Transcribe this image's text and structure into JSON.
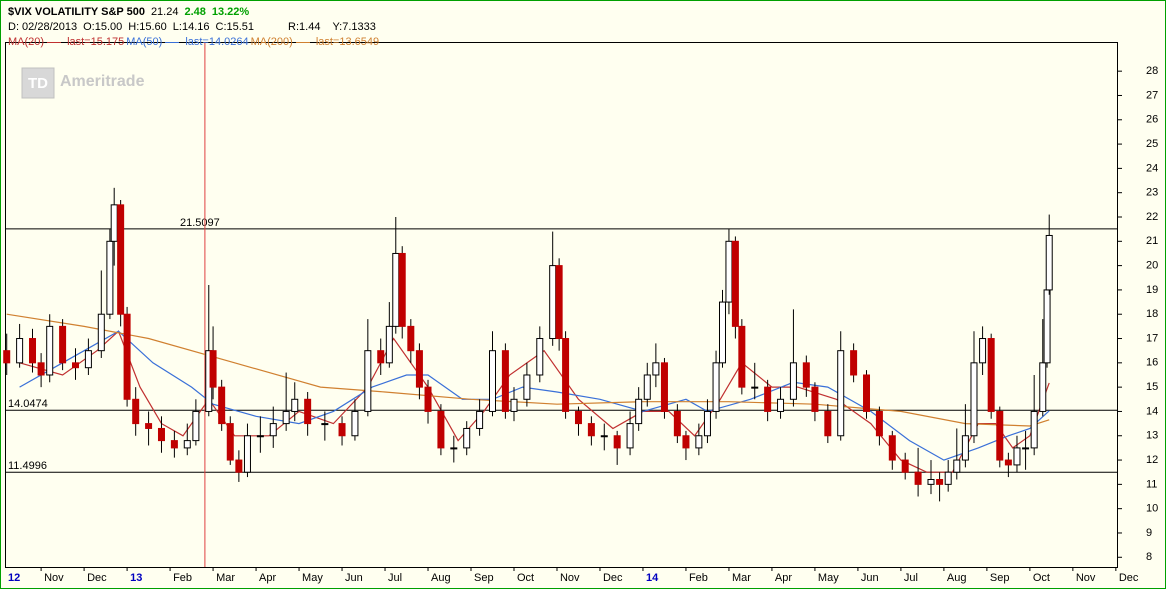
{
  "chart_data": {
    "type": "candlestick",
    "title": "$VIX VOLATILITY S&P 500",
    "last": 21.24,
    "change": 2.48,
    "change_percent": "13.22%",
    "cursor_info": [
      "D: 02/28/2013",
      "O:15.00",
      "H:15.60",
      "L:14.16",
      "C:15.51"
    ],
    "cursor_extra": [
      "R:1.44",
      "Y:7.1333"
    ],
    "watermark": {
      "logo": "TD",
      "text": "Ameritrade"
    },
    "cursor_x": 4.81,
    "levels": [
      21.5097,
      14.0474,
      11.4996
    ],
    "xlim": [
      0.16,
      26.05
    ],
    "xticks": [
      {
        "value": 0,
        "label": "12"
      },
      {
        "value": 1,
        "label": "Nov"
      },
      {
        "value": 2,
        "label": "Dec"
      },
      {
        "value": 3,
        "label": "13"
      },
      {
        "value": 4,
        "label": "Feb"
      },
      {
        "value": 5,
        "label": "Mar"
      },
      {
        "value": 6,
        "label": "Apr"
      },
      {
        "value": 7,
        "label": "May"
      },
      {
        "value": 8,
        "label": "Jun"
      },
      {
        "value": 9,
        "label": "Jul"
      },
      {
        "value": 10,
        "label": "Aug"
      },
      {
        "value": 11,
        "label": "Sep"
      },
      {
        "value": 12,
        "label": "Oct"
      },
      {
        "value": 13,
        "label": "Nov"
      },
      {
        "value": 14,
        "label": "Dec"
      },
      {
        "value": 15,
        "label": "14"
      },
      {
        "value": 16,
        "label": "Feb"
      },
      {
        "value": 17,
        "label": "Mar"
      },
      {
        "value": 18,
        "label": "Apr"
      },
      {
        "value": 19,
        "label": "May"
      },
      {
        "value": 20,
        "label": "Jun"
      },
      {
        "value": 21,
        "label": "Jul"
      },
      {
        "value": 22,
        "label": "Aug"
      },
      {
        "value": 23,
        "label": "Sep"
      },
      {
        "value": 24,
        "label": "Oct"
      },
      {
        "value": 25,
        "label": "Nov"
      },
      {
        "value": 26,
        "label": "Dec"
      }
    ],
    "ylim": [
      7.6,
      29.2
    ],
    "yticks": [
      8,
      9,
      10,
      11,
      12,
      13,
      14,
      15,
      16,
      17,
      18,
      19,
      20,
      21,
      22,
      23,
      24,
      25,
      26,
      27,
      28
    ],
    "up_color": "#ffffff",
    "down_color": "#c00000",
    "candles": [
      [
        0.2,
        16.5,
        17.2,
        15.5,
        16
      ],
      [
        0.5,
        16,
        17.6,
        15.8,
        17
      ],
      [
        0.8,
        17,
        17.4,
        15.6,
        16
      ],
      [
        1.0,
        16,
        16.4,
        15,
        15.5
      ],
      [
        1.2,
        15.5,
        18,
        15.2,
        17.5
      ],
      [
        1.5,
        17.5,
        17.8,
        15.7,
        16
      ],
      [
        1.8,
        16,
        16.6,
        15.3,
        15.8
      ],
      [
        2.1,
        15.8,
        17,
        15.5,
        16.5
      ],
      [
        2.4,
        16.5,
        19.8,
        16.2,
        18
      ],
      [
        2.6,
        18,
        21.5,
        17.8,
        21
      ],
      [
        2.7,
        21,
        23.2,
        20,
        22.5
      ],
      [
        2.85,
        22.5,
        22.7,
        17.5,
        18
      ],
      [
        3.0,
        18,
        18.3,
        14.2,
        14.5
      ],
      [
        3.2,
        14.5,
        15,
        13,
        13.5
      ],
      [
        3.5,
        13.5,
        14,
        12.6,
        13.3
      ],
      [
        3.8,
        13.3,
        13.8,
        12.3,
        12.8
      ],
      [
        4.1,
        12.8,
        13.2,
        12.1,
        12.5
      ],
      [
        4.4,
        12.5,
        13.5,
        12.2,
        12.8
      ],
      [
        4.6,
        12.8,
        14.5,
        12.6,
        14
      ],
      [
        4.9,
        14,
        19.2,
        13.8,
        16.5
      ],
      [
        5.0,
        16.5,
        17.5,
        14.5,
        15
      ],
      [
        5.2,
        15,
        15.3,
        13.2,
        13.5
      ],
      [
        5.4,
        13.5,
        13.8,
        11.8,
        12
      ],
      [
        5.6,
        12,
        12.4,
        11.1,
        11.5
      ],
      [
        5.8,
        11.5,
        13.5,
        11.3,
        13
      ],
      [
        6.1,
        13,
        13.8,
        12.3,
        13
      ],
      [
        6.4,
        13,
        14.2,
        12.5,
        13.5
      ],
      [
        6.7,
        13.5,
        15.6,
        13.2,
        14
      ],
      [
        6.9,
        14,
        15.2,
        13.6,
        14.5
      ],
      [
        7.2,
        14.5,
        14.8,
        13,
        13.5
      ],
      [
        7.6,
        13.5,
        14,
        12.8,
        13.5
      ],
      [
        8.0,
        13.5,
        13.8,
        12.6,
        13
      ],
      [
        8.3,
        13,
        14.5,
        12.8,
        14
      ],
      [
        8.6,
        14,
        17.8,
        13.8,
        16.5
      ],
      [
        8.9,
        16.5,
        17,
        15.5,
        16
      ],
      [
        9.1,
        16,
        18.5,
        15.8,
        17.5
      ],
      [
        9.25,
        17.5,
        22,
        17.2,
        20.5
      ],
      [
        9.4,
        20.5,
        20.8,
        17,
        17.5
      ],
      [
        9.6,
        17.5,
        17.8,
        16,
        16.5
      ],
      [
        9.8,
        16.5,
        16.8,
        14.5,
        15
      ],
      [
        10.0,
        15,
        15.3,
        13.5,
        14
      ],
      [
        10.3,
        14,
        14.3,
        12.2,
        12.5
      ],
      [
        10.6,
        12.5,
        13,
        11.9,
        12.5
      ],
      [
        10.9,
        12.5,
        13.6,
        12.2,
        13.3
      ],
      [
        11.2,
        13.3,
        14.5,
        13,
        14
      ],
      [
        11.5,
        14,
        17.3,
        13.8,
        16.5
      ],
      [
        11.8,
        16.5,
        16.8,
        13.7,
        14
      ],
      [
        12.0,
        14,
        15,
        13.6,
        14.5
      ],
      [
        12.3,
        14.5,
        16,
        14.2,
        15.5
      ],
      [
        12.6,
        15.5,
        17.5,
        15.2,
        17
      ],
      [
        12.9,
        17,
        21.4,
        16.7,
        20
      ],
      [
        13.05,
        20,
        20.3,
        16.5,
        17
      ],
      [
        13.2,
        17,
        17.3,
        13.7,
        14
      ],
      [
        13.5,
        14,
        14.2,
        13,
        13.5
      ],
      [
        13.8,
        13.5,
        13.8,
        12.6,
        13
      ],
      [
        14.1,
        13,
        13.5,
        12.4,
        13
      ],
      [
        14.4,
        13,
        13.2,
        11.8,
        12.5
      ],
      [
        14.7,
        12.5,
        14,
        12.2,
        13.5
      ],
      [
        14.9,
        13.5,
        15,
        13.2,
        14.5
      ],
      [
        15.1,
        14.5,
        16,
        14.2,
        15.5
      ],
      [
        15.3,
        15.5,
        16.8,
        15,
        16
      ],
      [
        15.5,
        16,
        16.2,
        13.7,
        14
      ],
      [
        15.8,
        14,
        14.3,
        12.7,
        13
      ],
      [
        16.0,
        13,
        13.2,
        12,
        12.5
      ],
      [
        16.3,
        12.5,
        13.5,
        12.2,
        13
      ],
      [
        16.5,
        13,
        14.5,
        12.7,
        14
      ],
      [
        16.7,
        14,
        16.5,
        13.7,
        16
      ],
      [
        16.85,
        16,
        19,
        15.8,
        18.5
      ],
      [
        17.0,
        18.5,
        21.5,
        18,
        21
      ],
      [
        17.15,
        21,
        21.2,
        17,
        17.5
      ],
      [
        17.3,
        17.5,
        17.8,
        14.7,
        15
      ],
      [
        17.6,
        15,
        16,
        14.5,
        15
      ],
      [
        17.9,
        15,
        15.3,
        13.6,
        14
      ],
      [
        18.2,
        14,
        15,
        13.7,
        14.5
      ],
      [
        18.5,
        14.5,
        18.2,
        14.2,
        16
      ],
      [
        18.8,
        16,
        16.3,
        14.6,
        15
      ],
      [
        19.0,
        15,
        15.2,
        13.6,
        14
      ],
      [
        19.3,
        14,
        14.3,
        12.7,
        13
      ],
      [
        19.6,
        13,
        17.3,
        12.8,
        16.5
      ],
      [
        19.9,
        16.5,
        16.8,
        15.2,
        15.5
      ],
      [
        20.2,
        15.5,
        15.7,
        13.7,
        14
      ],
      [
        20.5,
        14,
        14.2,
        12.6,
        13
      ],
      [
        20.8,
        13,
        13.2,
        11.6,
        12
      ],
      [
        21.1,
        12,
        12.3,
        11.2,
        11.5
      ],
      [
        21.4,
        11.5,
        12.5,
        10.5,
        11
      ],
      [
        21.7,
        11,
        12,
        10.6,
        11.2
      ],
      [
        21.9,
        11.2,
        11.5,
        10.3,
        11
      ],
      [
        22.1,
        11,
        12,
        10.7,
        11.5
      ],
      [
        22.3,
        11.5,
        13.3,
        11.2,
        12
      ],
      [
        22.5,
        12,
        14.3,
        11.7,
        13
      ],
      [
        22.7,
        13,
        17.3,
        12.7,
        16
      ],
      [
        22.9,
        16,
        17.5,
        15.5,
        17
      ],
      [
        23.1,
        17,
        17.2,
        13.7,
        14
      ],
      [
        23.3,
        14,
        14.2,
        11.7,
        12
      ],
      [
        23.5,
        12,
        12.3,
        11.3,
        11.8
      ],
      [
        23.7,
        11.8,
        13,
        11.5,
        12.5
      ],
      [
        23.9,
        12.5,
        13.2,
        11.6,
        12.5
      ],
      [
        24.1,
        12.5,
        15.5,
        12.2,
        14
      ],
      [
        24.3,
        14,
        17.8,
        13.8,
        16
      ],
      [
        24.4,
        16,
        19.5,
        15.8,
        19
      ],
      [
        24.45,
        19,
        22.1,
        18.8,
        21.24
      ]
    ],
    "series": [
      {
        "name": "MA(20)",
        "legend": "last=15.175",
        "color": "#c03030",
        "x": [
          0.5,
          1.5,
          2.3,
          2.8,
          3.3,
          3.8,
          4.3,
          4.9,
          5.5,
          6.3,
          7,
          7.8,
          8.6,
          9.2,
          10,
          10.7,
          11.3,
          11.9,
          12.7,
          13.5,
          14.3,
          15,
          15.6,
          16.2,
          16.8,
          17.3,
          18,
          18.6,
          19.5,
          20.3,
          21,
          21.6,
          22.2,
          22.8,
          23.2,
          23.6,
          24,
          24.45
        ],
        "values": [
          16,
          15.5,
          16.5,
          17.3,
          15,
          13.5,
          13,
          14.5,
          13,
          13,
          14,
          13.5,
          15,
          17,
          15,
          12.8,
          14,
          15.5,
          16.5,
          14.5,
          13.3,
          14,
          14,
          13,
          14.5,
          16,
          15,
          15,
          14.5,
          13.5,
          12,
          11.5,
          11.5,
          13.5,
          13.5,
          12.5,
          13,
          15.175
        ]
      },
      {
        "name": "MA(50)",
        "legend": "last=14.0264",
        "color": "#3a70d8",
        "x": [
          0.5,
          1.5,
          2,
          2.8,
          3.6,
          4.5,
          5,
          6,
          7,
          7.8,
          8.7,
          9.5,
          10,
          10.8,
          11.5,
          12.2,
          13,
          14,
          15,
          16,
          16.5,
          17.5,
          18.5,
          19.3,
          20.3,
          21.2,
          22,
          22.8,
          23.5,
          24,
          24.45
        ],
        "values": [
          15,
          16,
          16.5,
          17.3,
          16,
          15,
          14.3,
          13.8,
          13.5,
          14,
          15,
          15.5,
          15.5,
          14.5,
          14.5,
          15,
          14.8,
          14.5,
          14,
          14.5,
          14,
          14.5,
          15.2,
          15,
          14,
          12.8,
          12,
          12.5,
          13,
          13.3,
          14.0264
        ]
      },
      {
        "name": "MA(200)",
        "legend": "last=13.6549",
        "color": "#d08030",
        "x": [
          0.2,
          2,
          3.5,
          5.5,
          7.5,
          9,
          11,
          13,
          15,
          17,
          19,
          21,
          22.5,
          24,
          24.45
        ],
        "values": [
          18,
          17.5,
          17,
          16,
          15,
          14.8,
          14.5,
          14.3,
          14.4,
          14.4,
          14.3,
          14,
          13.5,
          13.4,
          13.6549
        ]
      }
    ]
  }
}
